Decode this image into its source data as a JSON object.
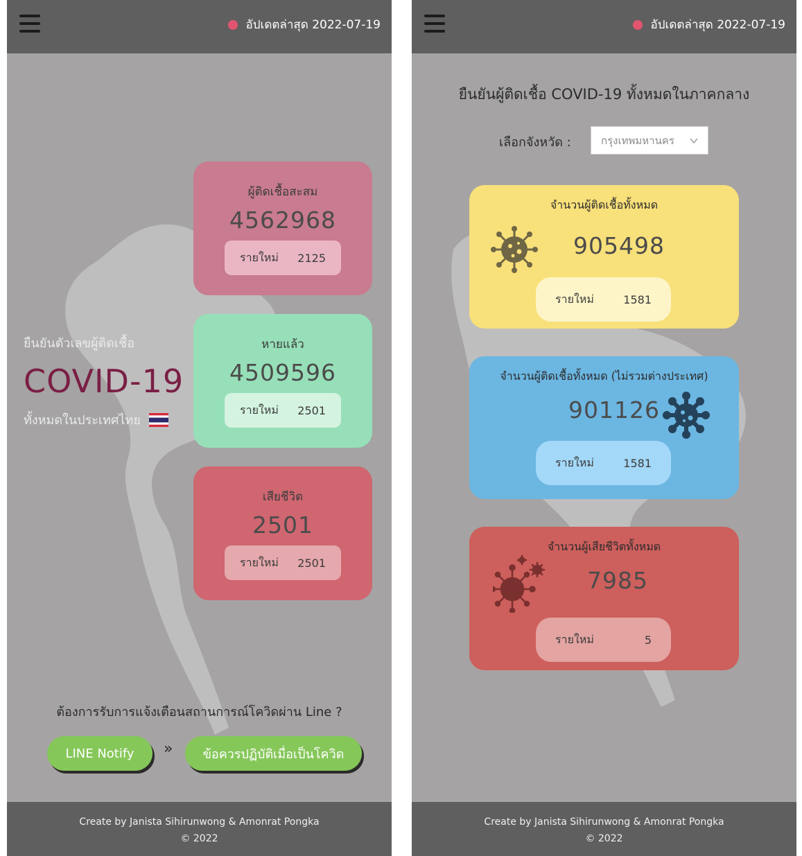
{
  "left_screen": {
    "update_text": "อัปเดตล่าสุด 2022-07-19",
    "hero": {
      "pre": "ยืนยันตัวเลขผู้ติดเชื้อ",
      "big": "COVID-19",
      "post": "ทั้งหมดในประเทศไทย"
    },
    "cards": {
      "cumulative": {
        "title": "ผู้ติดเชื้อสะสม",
        "value": "4562968",
        "new_label": "รายใหม่",
        "new_value": "2125"
      },
      "recovered": {
        "title": "หายแล้ว",
        "value": "4509596",
        "new_label": "รายใหม่",
        "new_value": "2501"
      },
      "deaths": {
        "title": "เสียชีวิต",
        "value": "2501",
        "new_label": "รายใหม่",
        "new_value": "2501"
      }
    },
    "line_question": "ต้องการรับการแจ้งเตือนสถานการณ์โควิดผ่าน Line ?",
    "chevron": "»",
    "buttons": {
      "line_notify": "LINE Notify",
      "advice": "ข้อควรปฏิบัติเมื่อเป็นโควิด"
    },
    "footer": {
      "credit": "Create by Janista Sihirunwong & Amonrat Pongka",
      "copyright": "© 2022"
    }
  },
  "right_screen": {
    "update_text": "อัปเดตล่าสุด 2022-07-19",
    "heading": "ยืนยันผู้ติดเชื้อ COVID-19 ทั้งหมดในภาคกลาง",
    "province_label": "เลือกจังหวัด :",
    "province_selected": "กรุงเทพมหานคร",
    "cards": {
      "total": {
        "title": "จำนวนผู้ติดเชื้อทั้งหมด",
        "value": "905498",
        "new_label": "รายใหม่",
        "new_value": "1581"
      },
      "domestic": {
        "title": "จำนวนผู้ติดเชื้อทั้งหมด (ไม่รวมต่างประเทศ)",
        "value": "901126",
        "new_label": "รายใหม่",
        "new_value": "1581"
      },
      "deaths": {
        "title": "จำนวนผู้เสียชีวิตทั้งหมด",
        "value": "7985",
        "new_label": "รายใหม่",
        "new_value": "5"
      }
    },
    "footer": {
      "credit": "Create by Janista Sihirunwong & Amonrat Pongka",
      "copyright": "© 2022"
    }
  },
  "colors": {
    "background": "#a5a3a3",
    "bar": "#5f5f5f",
    "update_dot": "#e25570",
    "covid_title": "#7a1f45",
    "card_cumulative": "#c97b8f",
    "card_recovered": "#97dfb8",
    "card_deaths": "#cf6670",
    "card_total": "#f8e07a",
    "card_domestic": "#6cb6e2",
    "card_region_deaths": "#cd5f5c",
    "button_green": "#86c75a"
  },
  "icons": [
    "menu-icon",
    "status-dot-icon",
    "thai-flag-icon",
    "chevron-down-icon",
    "virus-icon"
  ]
}
